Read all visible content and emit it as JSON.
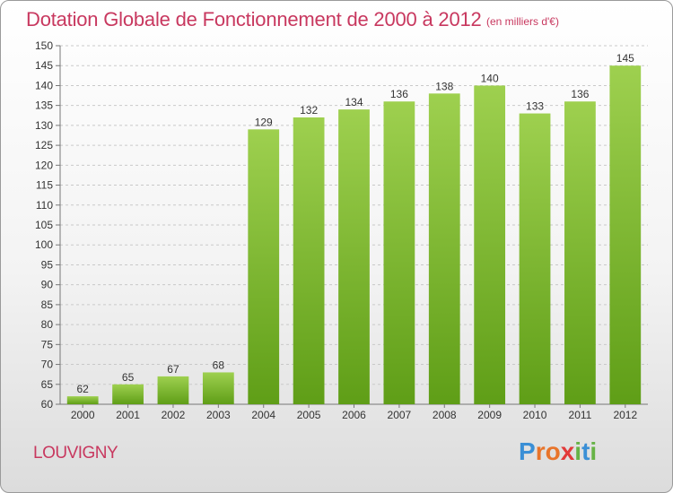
{
  "chart_data": {
    "type": "bar",
    "title": "Dotation Globale de Fonctionnement de 2000 à 2012",
    "unit_note": "(en milliers d'€)",
    "categories": [
      "2000",
      "2001",
      "2002",
      "2003",
      "2004",
      "2005",
      "2006",
      "2007",
      "2008",
      "2009",
      "2010",
      "2011",
      "2012"
    ],
    "values": [
      62,
      65,
      67,
      68,
      129,
      132,
      134,
      136,
      138,
      140,
      133,
      136,
      145
    ],
    "yticks": [
      60,
      65,
      70,
      75,
      80,
      85,
      90,
      95,
      100,
      105,
      110,
      115,
      120,
      125,
      130,
      135,
      140,
      145,
      150
    ],
    "ylim": [
      60,
      150
    ],
    "grid": true,
    "bar_color_top": "#9ed04f",
    "bar_color_bottom": "#5f9e17"
  },
  "footer": {
    "city": "LOUVIGNY",
    "logo_letters": [
      "P",
      "r",
      "o",
      "x",
      "i",
      "t",
      "i"
    ],
    "logo_colors": [
      "#3a8fd6",
      "#e8742a",
      "#e8742a",
      "#e23a3a",
      "#67b346",
      "#3a8fd6",
      "#67b346"
    ]
  }
}
